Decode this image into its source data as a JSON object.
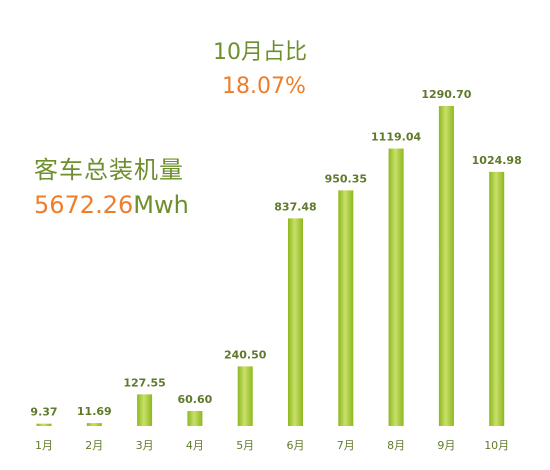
{
  "share": {
    "title": "10月占比",
    "value": "18.07%"
  },
  "total": {
    "title": "客车总装机量",
    "value": "5672.26",
    "unit": "Mwh"
  },
  "colors": {
    "bar_dark": "#8db71f",
    "bar_light": "#c9e06a",
    "text_green": "#6e8f2e",
    "accent_orange": "#ee7d2c"
  },
  "chart_data": {
    "type": "bar",
    "categories": [
      "1月",
      "2月",
      "3月",
      "4月",
      "5月",
      "6月",
      "7月",
      "8月",
      "9月",
      "10月"
    ],
    "values": [
      9.37,
      11.69,
      127.55,
      60.6,
      240.5,
      837.48,
      950.35,
      1119.04,
      1290.7,
      1024.98
    ],
    "value_labels": [
      "9.37",
      "11.69",
      "127.55",
      "60.60",
      "240.50",
      "837.48",
      "950.35",
      "1119.04",
      "1290.70",
      "1024.98"
    ],
    "title": "",
    "xlabel": "",
    "ylabel": "",
    "ylim": [
      0,
      1290.7
    ],
    "grid": false,
    "legend": "none"
  }
}
